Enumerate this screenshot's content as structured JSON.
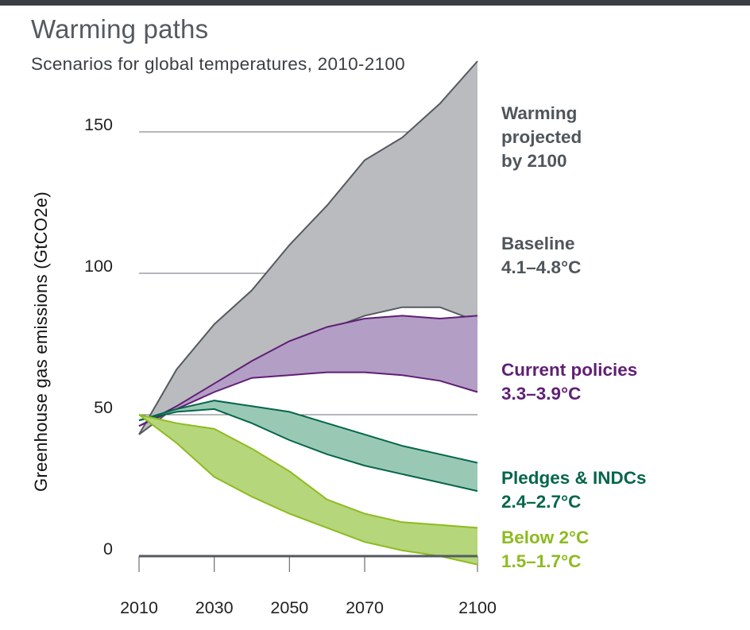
{
  "header": {
    "title": "Warming paths",
    "subtitle": "Scenarios for global temperatures, 2010-2100"
  },
  "colors": {
    "topbar": "#3b3e42",
    "gridline": "#6b6f74",
    "zero_line": "#555a60",
    "baseline_fill": "#b9bbbe",
    "baseline_line": "#555a60",
    "baseline_text": "#4f555b",
    "current_fill": "#b39ec6",
    "current_line": "#5f1f74",
    "current_text": "#5f1f74",
    "pledges_fill": "#99c9b5",
    "pledges_line": "#05664a",
    "pledges_text": "#05664a",
    "below2_fill": "#b5d67a",
    "below2_line": "#8dbb1f",
    "below2_text": "#8dbb1f"
  },
  "labels": {
    "projected": "Warming\nprojected\nby 2100",
    "baseline": "Baseline\n4.1–4.8°C",
    "current": "Current policies\n3.3–3.9°C",
    "pledges": "Pledges & INDCs\n2.4–2.7°C",
    "below2": "Below 2°C\n1.5–1.7°C"
  },
  "chart_data": {
    "type": "area",
    "title": "Warming paths",
    "subtitle": "Scenarios for global temperatures, 2010-2100",
    "xlabel": "",
    "ylabel": "Greenhouse gas emissions (GtCO2e)",
    "xlim": [
      2010,
      2100
    ],
    "ylim": [
      0,
      175
    ],
    "x_ticks": [
      2010,
      2030,
      2050,
      2070,
      2100
    ],
    "y_ticks": [
      0,
      50,
      100,
      150
    ],
    "series": [
      {
        "name": "Baseline 4.1–4.8°C",
        "upper": [
          [
            2010,
            43
          ],
          [
            2020,
            66
          ],
          [
            2030,
            82
          ],
          [
            2040,
            94
          ],
          [
            2050,
            110
          ],
          [
            2060,
            124
          ],
          [
            2070,
            140
          ],
          [
            2080,
            148
          ],
          [
            2090,
            160
          ],
          [
            2100,
            175
          ]
        ],
        "lower": [
          [
            2010,
            43
          ],
          [
            2020,
            53
          ],
          [
            2030,
            60
          ],
          [
            2040,
            67
          ],
          [
            2050,
            74
          ],
          [
            2060,
            80
          ],
          [
            2070,
            85
          ],
          [
            2080,
            88
          ],
          [
            2090,
            88
          ],
          [
            2100,
            83
          ]
        ]
      },
      {
        "name": "Current policies 3.3–3.9°C",
        "upper": [
          [
            2010,
            46
          ],
          [
            2020,
            53
          ],
          [
            2030,
            61
          ],
          [
            2040,
            69
          ],
          [
            2050,
            76
          ],
          [
            2060,
            81
          ],
          [
            2070,
            84
          ],
          [
            2080,
            85
          ],
          [
            2090,
            84
          ],
          [
            2100,
            85
          ]
        ],
        "lower": [
          [
            2010,
            46
          ],
          [
            2020,
            52
          ],
          [
            2030,
            58
          ],
          [
            2040,
            63
          ],
          [
            2050,
            64
          ],
          [
            2060,
            65
          ],
          [
            2070,
            65
          ],
          [
            2080,
            64
          ],
          [
            2090,
            62
          ],
          [
            2100,
            58
          ]
        ]
      },
      {
        "name": "Pledges & INDCs 2.4–2.7°C",
        "upper": [
          [
            2010,
            48
          ],
          [
            2020,
            52
          ],
          [
            2030,
            55
          ],
          [
            2040,
            53
          ],
          [
            2050,
            51
          ],
          [
            2060,
            47
          ],
          [
            2070,
            43
          ],
          [
            2080,
            39
          ],
          [
            2090,
            36
          ],
          [
            2100,
            33
          ]
        ],
        "lower": [
          [
            2010,
            48
          ],
          [
            2020,
            51
          ],
          [
            2030,
            52
          ],
          [
            2040,
            47
          ],
          [
            2050,
            41
          ],
          [
            2060,
            36
          ],
          [
            2070,
            32
          ],
          [
            2080,
            29
          ],
          [
            2090,
            26
          ],
          [
            2100,
            23
          ]
        ]
      },
      {
        "name": "Below 2°C 1.5–1.7°C",
        "upper": [
          [
            2010,
            50
          ],
          [
            2020,
            47
          ],
          [
            2030,
            45
          ],
          [
            2040,
            38
          ],
          [
            2050,
            30
          ],
          [
            2060,
            20
          ],
          [
            2070,
            15
          ],
          [
            2080,
            12
          ],
          [
            2090,
            11
          ],
          [
            2100,
            10
          ]
        ],
        "lower": [
          [
            2010,
            50
          ],
          [
            2020,
            40
          ],
          [
            2030,
            28
          ],
          [
            2040,
            21
          ],
          [
            2050,
            15
          ],
          [
            2060,
            10
          ],
          [
            2070,
            5
          ],
          [
            2080,
            2
          ],
          [
            2090,
            0
          ],
          [
            2100,
            -3
          ]
        ]
      }
    ]
  }
}
